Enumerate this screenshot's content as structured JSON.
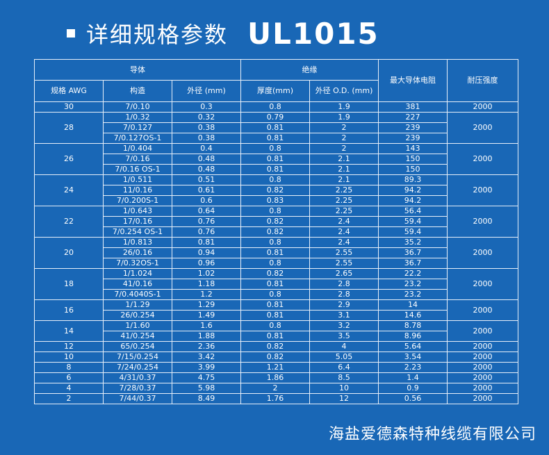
{
  "header": {
    "title": "详细规格参数",
    "model": "UL1015"
  },
  "table": {
    "group_headers": {
      "conductor": "导体",
      "insulation": "绝缘",
      "resistance": "最大导体电阻",
      "voltage": "耐压强度"
    },
    "sub_headers": {
      "awg": "规格 AWG",
      "construction": "构造",
      "conductor_od": "外径 (mm)",
      "thickness": "厚度(mm)",
      "insulation_od": "外径 O.D. (mm)"
    },
    "groups": [
      {
        "awg": "30",
        "voltage": "2000",
        "rows": [
          {
            "construction": "7/0.10",
            "od": "0.3",
            "thickness": "0.8",
            "insod": "1.9",
            "res": "381"
          }
        ]
      },
      {
        "awg": "28",
        "voltage": "2000",
        "rows": [
          {
            "construction": "1/0.32",
            "od": "0.32",
            "thickness": "0.79",
            "insod": "1.9",
            "res": "227"
          },
          {
            "construction": "7/0.127",
            "od": "0.38",
            "thickness": "0.81",
            "insod": "2",
            "res": "239"
          },
          {
            "construction": "7/0.127OS-1",
            "od": "0.38",
            "thickness": "0.81",
            "insod": "2",
            "res": "239"
          }
        ]
      },
      {
        "awg": "26",
        "voltage": "2000",
        "rows": [
          {
            "construction": "1/0.404",
            "od": "0.4",
            "thickness": "0.8",
            "insod": "2",
            "res": "143"
          },
          {
            "construction": "7/0.16",
            "od": "0.48",
            "thickness": "0.81",
            "insod": "2.1",
            "res": "150"
          },
          {
            "construction": "7/0.16 OS-1",
            "od": "0.48",
            "thickness": "0.81",
            "insod": "2.1",
            "res": "150"
          }
        ]
      },
      {
        "awg": "24",
        "voltage": "2000",
        "rows": [
          {
            "construction": "1/0.511",
            "od": "0.51",
            "thickness": "0.8",
            "insod": "2.1",
            "res": "89.3"
          },
          {
            "construction": "11/0.16",
            "od": "0.61",
            "thickness": "0.82",
            "insod": "2.25",
            "res": "94.2"
          },
          {
            "construction": "7/0.200S-1",
            "od": "0.6",
            "thickness": "0.83",
            "insod": "2.25",
            "res": "94.2"
          }
        ]
      },
      {
        "awg": "22",
        "voltage": "2000",
        "rows": [
          {
            "construction": "1/0.643",
            "od": "0.64",
            "thickness": "0.8",
            "insod": "2.25",
            "res": "56.4"
          },
          {
            "construction": "17/0.16",
            "od": "0.76",
            "thickness": "0.82",
            "insod": "2.4",
            "res": "59.4"
          },
          {
            "construction": "7/0.254 OS-1",
            "od": "0.76",
            "thickness": "0.82",
            "insod": "2.4",
            "res": "59.4"
          }
        ]
      },
      {
        "awg": "20",
        "voltage": "2000",
        "rows": [
          {
            "construction": "1/0.813",
            "od": "0.81",
            "thickness": "0.8",
            "insod": "2.4",
            "res": "35.2"
          },
          {
            "construction": "26/0.16",
            "od": "0.94",
            "thickness": "0.81",
            "insod": "2.55",
            "res": "36.7"
          },
          {
            "construction": "7/0.32OS-1",
            "od": "0.96",
            "thickness": "0.8",
            "insod": "2.55",
            "res": "36.7"
          }
        ]
      },
      {
        "awg": "18",
        "voltage": "2000",
        "rows": [
          {
            "construction": "1/1.024",
            "od": "1.02",
            "thickness": "0.82",
            "insod": "2.65",
            "res": "22.2"
          },
          {
            "construction": "41/0.16",
            "od": "1.18",
            "thickness": "0.81",
            "insod": "2.8",
            "res": "23.2"
          },
          {
            "construction": "7/0.4040S-1",
            "od": "1.2",
            "thickness": "0.8",
            "insod": "2.8",
            "res": "23.2"
          }
        ]
      },
      {
        "awg": "16",
        "voltage": "2000",
        "rows": [
          {
            "construction": "1/1.29",
            "od": "1.29",
            "thickness": "0.81",
            "insod": "2.9",
            "res": "14"
          },
          {
            "construction": "26/0.254",
            "od": "1.49",
            "thickness": "0.81",
            "insod": "3.1",
            "res": "14.6"
          }
        ]
      },
      {
        "awg": "14",
        "voltage": "2000",
        "rows": [
          {
            "construction": "1/1.60",
            "od": "1.6",
            "thickness": "0.8",
            "insod": "3.2",
            "res": "8.78"
          },
          {
            "construction": "41/0.254",
            "od": "1.88",
            "thickness": "0.81",
            "insod": "3.5",
            "res": "8.96"
          }
        ]
      },
      {
        "awg": "12",
        "voltage": "2000",
        "rows": [
          {
            "construction": "65/0.254",
            "od": "2.36",
            "thickness": "0.82",
            "insod": "4",
            "res": "5.64"
          }
        ]
      },
      {
        "awg": "10",
        "voltage": "2000",
        "rows": [
          {
            "construction": "7/15/0.254",
            "od": "3.42",
            "thickness": "0.82",
            "insod": "5.05",
            "res": "3.54"
          }
        ]
      },
      {
        "awg": "8",
        "voltage": "2000",
        "rows": [
          {
            "construction": "7/24/0.254",
            "od": "3.99",
            "thickness": "1.21",
            "insod": "6.4",
            "res": "2.23"
          }
        ]
      },
      {
        "awg": "6",
        "voltage": "2000",
        "rows": [
          {
            "construction": "4/31/0.37",
            "od": "4.75",
            "thickness": "1.86",
            "insod": "8.5",
            "res": "1.4"
          }
        ]
      },
      {
        "awg": "4",
        "voltage": "2000",
        "rows": [
          {
            "construction": "7/28/0.37",
            "od": "5.98",
            "thickness": "2",
            "insod": "10",
            "res": "0.9"
          }
        ]
      },
      {
        "awg": "2",
        "voltage": "2000",
        "rows": [
          {
            "construction": "7/44/0.37",
            "od": "8.49",
            "thickness": "1.76",
            "insod": "12",
            "res": "0.56"
          }
        ]
      }
    ]
  },
  "footer": {
    "company": "海盐爱德森特种线缆有限公司"
  }
}
